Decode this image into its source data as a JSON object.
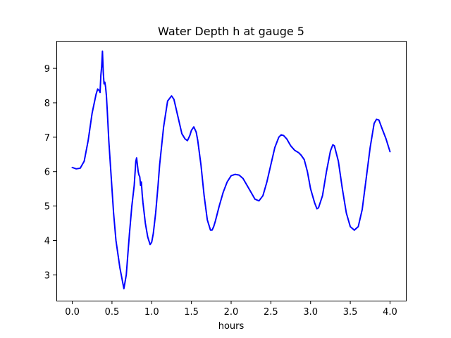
{
  "chart_data": {
    "type": "line",
    "title": "Water Depth h at gauge 5",
    "xlabel": "hours",
    "ylabel": "",
    "xlim": [
      -0.2,
      4.2
    ],
    "ylim": [
      2.25,
      9.8
    ],
    "xticks": [
      0.0,
      0.5,
      1.0,
      1.5,
      2.0,
      2.5,
      3.0,
      3.5,
      4.0
    ],
    "xtick_labels": [
      "0.0",
      "0.5",
      "1.0",
      "1.5",
      "2.0",
      "2.5",
      "3.0",
      "3.5",
      "4.0"
    ],
    "yticks": [
      3,
      4,
      5,
      6,
      7,
      8,
      9
    ],
    "ytick_labels": [
      "3",
      "4",
      "5",
      "6",
      "7",
      "8",
      "9"
    ],
    "grid": false,
    "legend": "none",
    "series": [
      {
        "color": "#0000ff",
        "x": [
          0.0,
          0.05,
          0.1,
          0.15,
          0.2,
          0.25,
          0.3,
          0.32,
          0.34,
          0.35,
          0.36,
          0.37,
          0.38,
          0.39,
          0.4,
          0.41,
          0.42,
          0.43,
          0.44,
          0.46,
          0.48,
          0.5,
          0.52,
          0.55,
          0.6,
          0.65,
          0.68,
          0.7,
          0.72,
          0.75,
          0.78,
          0.8,
          0.81,
          0.82,
          0.83,
          0.84,
          0.85,
          0.86,
          0.87,
          0.88,
          0.89,
          0.9,
          0.92,
          0.95,
          0.98,
          1.0,
          1.02,
          1.05,
          1.08,
          1.1,
          1.15,
          1.2,
          1.25,
          1.28,
          1.3,
          1.33,
          1.38,
          1.42,
          1.45,
          1.48,
          1.5,
          1.53,
          1.56,
          1.58,
          1.62,
          1.66,
          1.7,
          1.74,
          1.76,
          1.78,
          1.8,
          1.85,
          1.9,
          1.95,
          2.0,
          2.05,
          2.1,
          2.15,
          2.2,
          2.25,
          2.3,
          2.35,
          2.4,
          2.45,
          2.5,
          2.55,
          2.6,
          2.63,
          2.66,
          2.7,
          2.75,
          2.8,
          2.85,
          2.88,
          2.92,
          2.96,
          3.0,
          3.05,
          3.08,
          3.1,
          3.15,
          3.2,
          3.25,
          3.28,
          3.3,
          3.35,
          3.4,
          3.45,
          3.5,
          3.55,
          3.6,
          3.65,
          3.7,
          3.75,
          3.8,
          3.83,
          3.86,
          3.9,
          3.95,
          4.0
        ],
        "values": [
          6.12,
          6.08,
          6.1,
          6.3,
          6.9,
          7.7,
          8.25,
          8.4,
          8.35,
          8.3,
          8.8,
          9.05,
          9.5,
          8.9,
          8.55,
          8.6,
          8.45,
          8.2,
          7.8,
          6.9,
          6.2,
          5.5,
          4.8,
          4.0,
          3.2,
          2.6,
          3.0,
          3.6,
          4.2,
          5.0,
          5.6,
          6.3,
          6.4,
          6.2,
          6.0,
          5.9,
          5.85,
          5.6,
          5.7,
          5.35,
          5.1,
          4.9,
          4.5,
          4.1,
          3.88,
          3.95,
          4.2,
          4.8,
          5.6,
          6.2,
          7.3,
          8.05,
          8.2,
          8.1,
          7.9,
          7.6,
          7.1,
          6.95,
          6.9,
          7.05,
          7.2,
          7.3,
          7.15,
          6.9,
          6.2,
          5.3,
          4.6,
          4.3,
          4.3,
          4.4,
          4.55,
          5.0,
          5.4,
          5.7,
          5.88,
          5.92,
          5.9,
          5.8,
          5.6,
          5.4,
          5.2,
          5.15,
          5.3,
          5.7,
          6.2,
          6.7,
          7.0,
          7.07,
          7.05,
          6.95,
          6.75,
          6.62,
          6.55,
          6.48,
          6.35,
          6.0,
          5.5,
          5.1,
          4.92,
          4.95,
          5.3,
          6.0,
          6.6,
          6.78,
          6.75,
          6.3,
          5.5,
          4.8,
          4.4,
          4.3,
          4.4,
          4.9,
          5.8,
          6.7,
          7.4,
          7.52,
          7.5,
          7.25,
          6.95,
          6.58
        ]
      }
    ]
  }
}
